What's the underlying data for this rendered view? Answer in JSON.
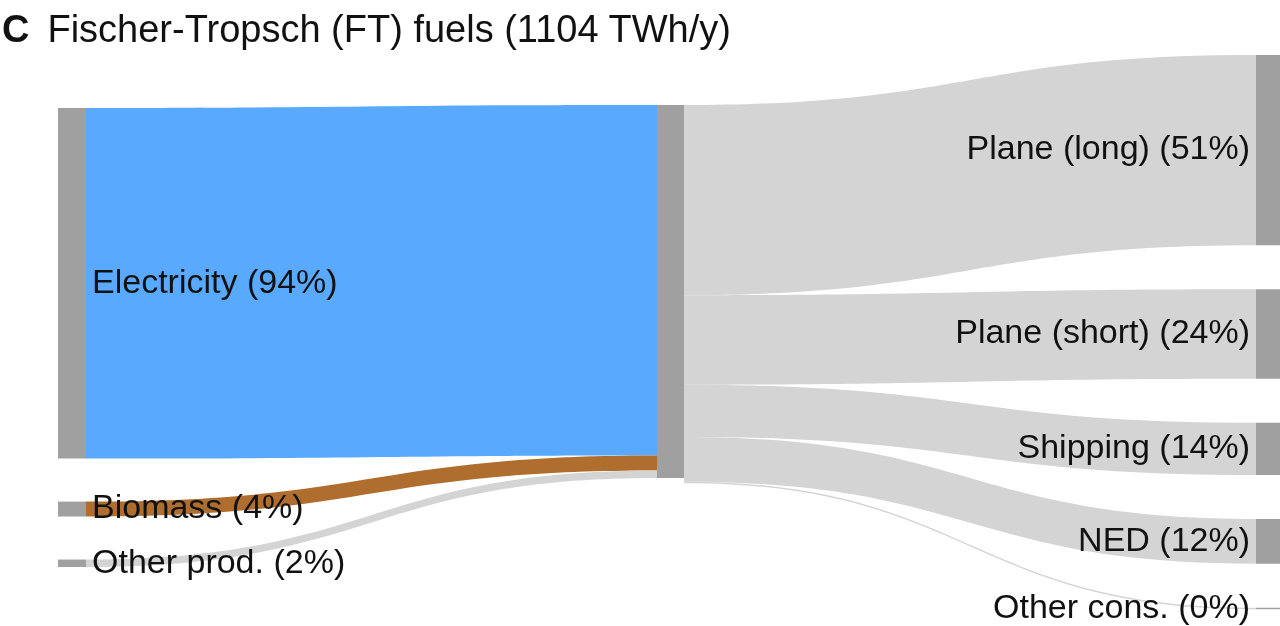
{
  "chart_data": {
    "type": "other",
    "title": "Fischer-Tropsch (FT) fuels (1104 TWh/y)",
    "annotations": [
      "C"
    ],
    "categories": [
      "Electricity",
      "Biomass",
      "Other prod.",
      "Plane (long)",
      "Plane (short)",
      "Shipping",
      "NED",
      "Other cons."
    ],
    "series": [
      {
        "color": "#a0a0a0",
        "values": [
          94,
          4,
          2,
          null,
          null,
          null,
          null,
          null
        ],
        "value_labels": [
          "(94%)",
          "(4%)",
          "(2%)",
          null,
          null,
          null,
          null,
          null
        ],
        "colors": [
          "#59aaff",
          "#b06e2e",
          "#d4d4d4",
          null,
          null,
          null,
          null,
          null
        ]
      },
      {
        "color": "#a0a0a0",
        "values": [
          null,
          null,
          null,
          51,
          24,
          14,
          12,
          0
        ],
        "value_labels": [
          null,
          null,
          null,
          "(51%)",
          "(24%)",
          "(14%)",
          "(12%)",
          "(0%)"
        ],
        "colors": [
          null,
          null,
          null,
          "#d4d4d4",
          "#d4d4d4",
          "#d4d4d4",
          "#d4d4d4",
          "#d4d4d4"
        ]
      }
    ]
  }
}
